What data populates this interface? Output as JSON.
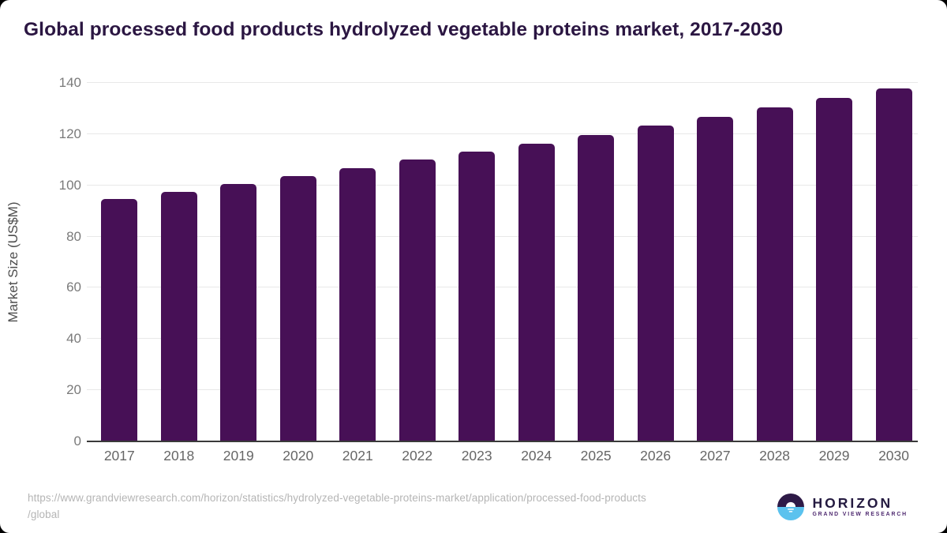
{
  "page": {
    "background_color": "#000000",
    "card_background_color": "#ffffff"
  },
  "header": {
    "title": "Global processed food products hydrolyzed vegetable proteins market, 2017-2030",
    "title_color": "#2b1642"
  },
  "chart_data": {
    "type": "bar",
    "title": "Global processed food products hydrolyzed vegetable proteins market, 2017-2030",
    "categories": [
      "2017",
      "2018",
      "2019",
      "2020",
      "2021",
      "2022",
      "2023",
      "2024",
      "2025",
      "2026",
      "2027",
      "2028",
      "2029",
      "2030"
    ],
    "values": [
      94.6,
      97.5,
      100.6,
      103.7,
      106.8,
      110.1,
      113.3,
      116.4,
      119.8,
      123.2,
      126.8,
      130.5,
      134.0,
      138.0
    ],
    "xlabel": "",
    "ylabel": "Market Size (US$M)",
    "ylim": [
      0,
      140
    ],
    "yticks": [
      0,
      20,
      40,
      60,
      80,
      100,
      120,
      140
    ],
    "grid": "horizontal",
    "legend": "none",
    "bar_color": "#471056",
    "grid_color": "#e8e8e8",
    "axis_line_color": "#3a3a3a",
    "tick_label_color": "#7a7a7a"
  },
  "footer": {
    "source_url_lines": [
      "https://www.grandviewresearch.com/horizon/statistics/hydrolyzed-vegetable-proteins-market/application/processed-food-products",
      "/global"
    ]
  },
  "logo": {
    "name": "HORIZON",
    "subtitle": "GRAND VIEW RESEARCH",
    "circle_top_color": "#2e1a47",
    "circle_bottom_color": "#5bc2ee"
  }
}
